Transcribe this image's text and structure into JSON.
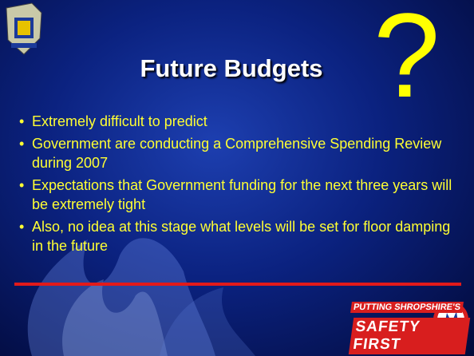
{
  "slide": {
    "title": "Future Budgets",
    "mark": "?",
    "bullets": [
      "Extremely difficult to predict",
      "Government are conducting a Comprehensive Spending Review during 2007",
      "Expectations that Government funding for the next three years will be extremely tight",
      "Also, no idea at this stage what levels will be set for floor damping in the future"
    ],
    "footer": {
      "line1": "PUTTING SHROPSHIRE'S",
      "line2": "SAFETY FIRST"
    }
  }
}
